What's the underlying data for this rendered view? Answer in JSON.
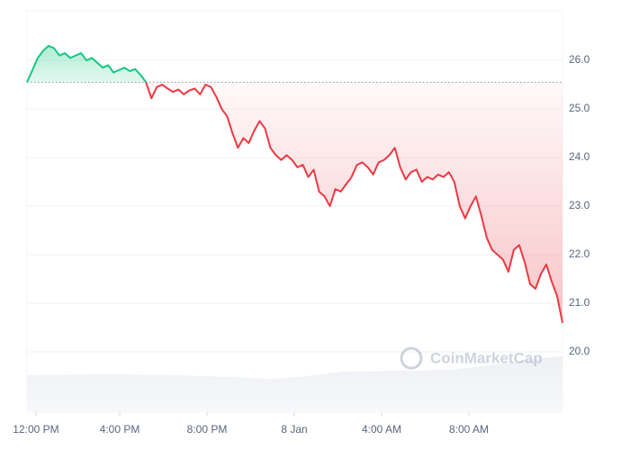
{
  "chart_data": {
    "type": "line",
    "watermark": "CoinMarketCap",
    "baseline": 25.55,
    "up_color": "#16c784",
    "down_color": "#ea3943",
    "grid": true,
    "xlim": [
      0,
      99
    ],
    "xticks": [
      {
        "value": 1.66,
        "label": "12:00 PM"
      },
      {
        "value": 17.14,
        "label": "4:00 PM"
      },
      {
        "value": 33.28,
        "label": "8:00 PM"
      },
      {
        "value": 49.42,
        "label": "8 Jan"
      },
      {
        "value": 65.56,
        "label": "4:00 AM"
      },
      {
        "value": 81.7,
        "label": "8:00 AM"
      }
    ],
    "ylim": [
      18.76,
      27.02
    ],
    "yticks": [
      {
        "value": 20,
        "label": "20.0"
      },
      {
        "value": 21,
        "label": "21.0"
      },
      {
        "value": 22,
        "label": "22.0"
      },
      {
        "value": 23,
        "label": "23.0"
      },
      {
        "value": 24,
        "label": "24.0"
      },
      {
        "value": 25,
        "label": "25.0"
      },
      {
        "value": 26,
        "label": "26.0"
      }
    ],
    "values": [
      25.55,
      25.8,
      26.05,
      26.2,
      26.3,
      26.25,
      26.1,
      26.15,
      26.05,
      26.1,
      26.15,
      26.0,
      26.05,
      25.95,
      25.85,
      25.9,
      25.75,
      25.8,
      25.85,
      25.78,
      25.82,
      25.7,
      25.55,
      25.22,
      25.45,
      25.5,
      25.42,
      25.35,
      25.4,
      25.3,
      25.38,
      25.42,
      25.3,
      25.5,
      25.45,
      25.25,
      25.0,
      24.85,
      24.5,
      24.2,
      24.4,
      24.3,
      24.55,
      24.75,
      24.6,
      24.2,
      24.05,
      23.95,
      24.05,
      23.95,
      23.8,
      23.85,
      23.6,
      23.75,
      23.3,
      23.2,
      23.0,
      23.35,
      23.3,
      23.45,
      23.6,
      23.85,
      23.9,
      23.8,
      23.65,
      23.9,
      23.95,
      24.05,
      24.2,
      23.8,
      23.55,
      23.7,
      23.75,
      23.5,
      23.6,
      23.55,
      23.65,
      23.6,
      23.7,
      23.5,
      23.0,
      22.75,
      23.0,
      23.2,
      22.8,
      22.35,
      22.1,
      22.0,
      21.9,
      21.65,
      22.1,
      22.2,
      21.85,
      21.4,
      21.3,
      21.6,
      21.8,
      21.45,
      21.15,
      20.6
    ]
  }
}
